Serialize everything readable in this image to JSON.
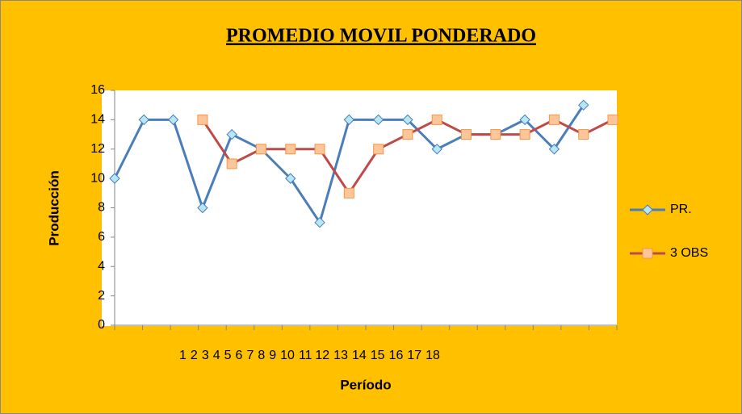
{
  "chart_data": {
    "type": "line",
    "title": "PROMEDIO MOVIL PONDERADO",
    "x_label": "Período",
    "y_label": "Producción",
    "categories": [
      "1",
      "2",
      "3",
      "4",
      "5",
      "6",
      "7",
      "8",
      "9",
      "10",
      "11",
      "12",
      "13",
      "14",
      "15",
      "16",
      "17",
      "18"
    ],
    "series": [
      {
        "name": "PR.",
        "color": "#4a7ebb",
        "marker": "diamond",
        "marker_fill": "#b7e6f5",
        "values": [
          10,
          14,
          14,
          8,
          13,
          12,
          10,
          7,
          14,
          14,
          14,
          12,
          13,
          13,
          14,
          12,
          15,
          null
        ]
      },
      {
        "name": "3 OBS",
        "color": "#be4b48",
        "marker": "square",
        "marker_fill": "#fcc69a",
        "values": [
          null,
          null,
          null,
          14,
          11,
          12,
          12,
          12,
          9,
          12,
          13,
          14,
          13,
          13,
          13,
          14,
          13,
          14
        ]
      }
    ],
    "ylim": [
      0,
      16
    ],
    "yticks": [
      0,
      2,
      4,
      6,
      8,
      10,
      12,
      14,
      16
    ],
    "grid": false,
    "legend": "right"
  }
}
